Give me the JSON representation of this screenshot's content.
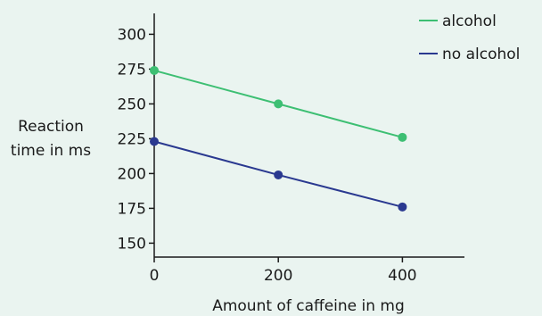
{
  "chart_data": {
    "type": "line",
    "xlabel": "Amount of caffeine in mg",
    "ylabel_lines": [
      "Reaction",
      "time in ms"
    ],
    "x": [
      0,
      200,
      400
    ],
    "xticks": [
      0,
      200,
      400
    ],
    "yticks": [
      150,
      175,
      200,
      225,
      250,
      275,
      300
    ],
    "xlim": [
      0,
      500
    ],
    "ylim": [
      140,
      315
    ],
    "legend_position": "top-right",
    "series": [
      {
        "name": "alcohol",
        "color": "#3dbf73",
        "values": [
          274,
          250,
          226
        ]
      },
      {
        "name": "no alcohol",
        "color": "#2a3990",
        "values": [
          223,
          199,
          176
        ]
      }
    ]
  }
}
